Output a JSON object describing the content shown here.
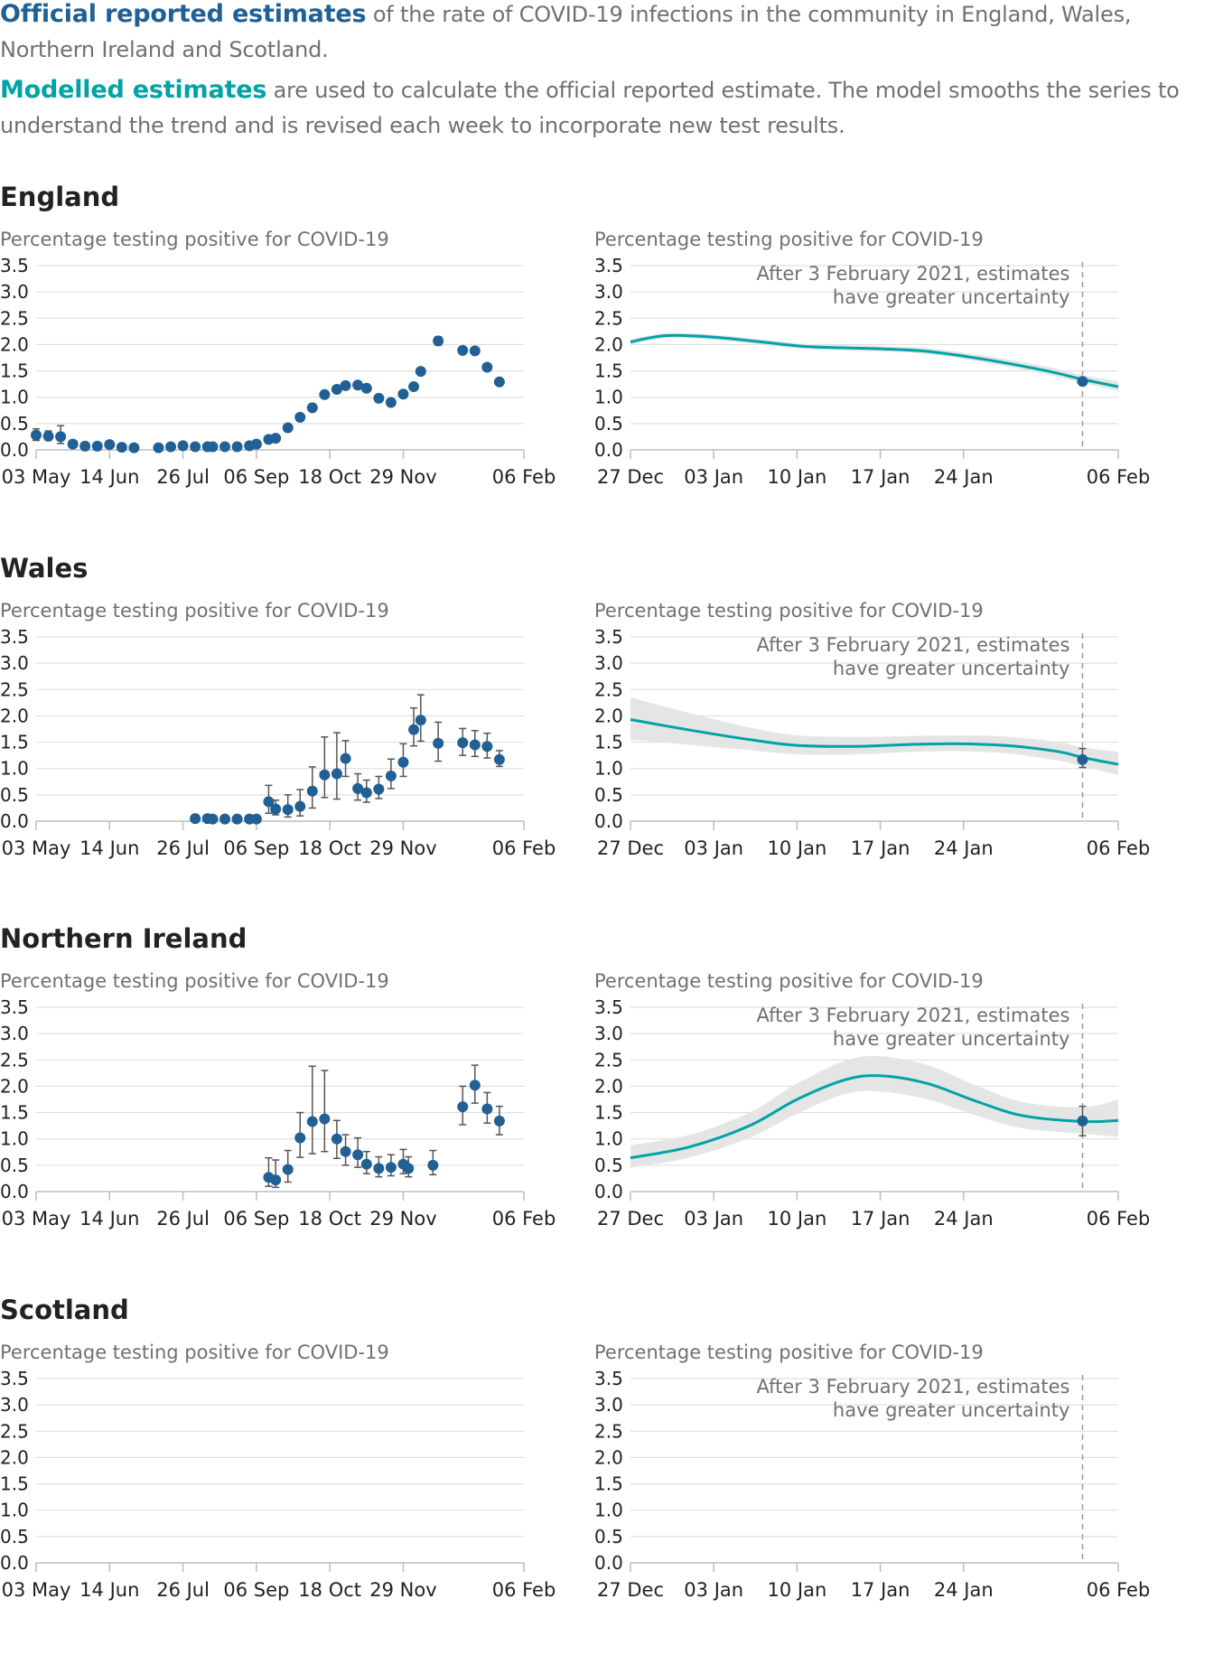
{
  "intro": {
    "official_key": "Official reported estimates",
    "official_rest": " of the rate of COVID-19 infections in the community in England, Wales, Northern Ireland and Scotland.",
    "modelled_key": "Modelled estimates",
    "modelled_rest": " are used to calculate the official reported estimate. The model smooths the series to understand the trend and is revised each week to incorporate new test results."
  },
  "colors": {
    "official": "#206095",
    "modelled": "#00a3a6",
    "band": "#e5e5e5",
    "grid": "#d9d9d9"
  },
  "chart_common": {
    "y_title": "Percentage testing positive for COVID-19",
    "y_ticks": [
      "0.0",
      "0.5",
      "1.0",
      "1.5",
      "2.0",
      "2.5",
      "3.0",
      "3.5"
    ],
    "left_x_ticks": [
      "03 May",
      "14 Jun",
      "26 Jul",
      "06 Sep",
      "18 Oct",
      "29 Nov",
      "06 Feb"
    ],
    "right_x_ticks": [
      "27 Dec",
      "03 Jan",
      "10 Jan",
      "17 Jan",
      "24 Jan",
      "06 Feb"
    ],
    "annotation_line1": "After 3 February 2021, estimates",
    "annotation_line2": "have greater uncertainty"
  },
  "chart_data": [
    {
      "region": "England",
      "type": "scatter",
      "panel": "official",
      "ylim": [
        0,
        3.5
      ],
      "x_range": [
        "2020-05-03",
        "2021-02-06"
      ],
      "points": [
        {
          "x": "2020-05-03",
          "y": 0.28,
          "lo": 0.18,
          "hi": 0.4
        },
        {
          "x": "2020-05-10",
          "y": 0.26,
          "lo": 0.18,
          "hi": 0.36
        },
        {
          "x": "2020-05-17",
          "y": 0.25,
          "lo": 0.12,
          "hi": 0.46
        },
        {
          "x": "2020-05-24",
          "y": 0.11,
          "lo": 0.07,
          "hi": 0.16
        },
        {
          "x": "2020-05-31",
          "y": 0.07,
          "lo": 0.05,
          "hi": 0.1
        },
        {
          "x": "2020-06-07",
          "y": 0.07,
          "lo": 0.05,
          "hi": 0.1
        },
        {
          "x": "2020-06-14",
          "y": 0.1,
          "lo": 0.04,
          "hi": 0.16
        },
        {
          "x": "2020-06-21",
          "y": 0.05,
          "lo": 0.03,
          "hi": 0.08
        },
        {
          "x": "2020-06-28",
          "y": 0.04,
          "lo": 0.02,
          "hi": 0.07
        },
        {
          "x": "2020-07-12",
          "y": 0.04,
          "lo": 0.02,
          "hi": 0.07
        },
        {
          "x": "2020-07-19",
          "y": 0.06,
          "lo": 0.03,
          "hi": 0.09
        },
        {
          "x": "2020-07-26",
          "y": 0.08,
          "lo": 0.05,
          "hi": 0.11
        },
        {
          "x": "2020-08-02",
          "y": 0.06,
          "lo": 0.04,
          "hi": 0.09
        },
        {
          "x": "2020-08-09",
          "y": 0.06,
          "lo": 0.04,
          "hi": 0.09
        },
        {
          "x": "2020-08-12",
          "y": 0.06,
          "lo": 0.04,
          "hi": 0.09
        },
        {
          "x": "2020-08-19",
          "y": 0.06,
          "lo": 0.04,
          "hi": 0.09
        },
        {
          "x": "2020-08-26",
          "y": 0.06,
          "lo": 0.04,
          "hi": 0.09
        },
        {
          "x": "2020-09-02",
          "y": 0.08,
          "lo": 0.05,
          "hi": 0.11
        },
        {
          "x": "2020-09-06",
          "y": 0.11,
          "lo": 0.08,
          "hi": 0.14
        },
        {
          "x": "2020-09-13",
          "y": 0.2,
          "lo": 0.16,
          "hi": 0.24
        },
        {
          "x": "2020-09-17",
          "y": 0.22,
          "lo": 0.18,
          "hi": 0.26
        },
        {
          "x": "2020-09-24",
          "y": 0.42,
          "lo": 0.37,
          "hi": 0.47
        },
        {
          "x": "2020-10-01",
          "y": 0.62,
          "lo": 0.57,
          "hi": 0.67
        },
        {
          "x": "2020-10-08",
          "y": 0.8,
          "lo": 0.75,
          "hi": 0.85
        },
        {
          "x": "2020-10-15",
          "y": 1.05,
          "lo": 1.0,
          "hi": 1.1
        },
        {
          "x": "2020-10-22",
          "y": 1.15,
          "lo": 1.1,
          "hi": 1.2
        },
        {
          "x": "2020-10-27",
          "y": 1.22,
          "lo": 1.17,
          "hi": 1.27
        },
        {
          "x": "2020-11-03",
          "y": 1.23,
          "lo": 1.18,
          "hi": 1.28
        },
        {
          "x": "2020-11-08",
          "y": 1.17,
          "lo": 1.12,
          "hi": 1.22
        },
        {
          "x": "2020-11-15",
          "y": 0.98,
          "lo": 0.93,
          "hi": 1.03
        },
        {
          "x": "2020-11-22",
          "y": 0.9,
          "lo": 0.85,
          "hi": 0.95
        },
        {
          "x": "2020-11-29",
          "y": 1.06,
          "lo": 1.01,
          "hi": 1.11
        },
        {
          "x": "2020-12-05",
          "y": 1.2,
          "lo": 1.15,
          "hi": 1.25
        },
        {
          "x": "2020-12-09",
          "y": 1.49,
          "lo": 1.44,
          "hi": 1.54
        },
        {
          "x": "2020-12-19",
          "y": 2.07,
          "lo": 1.99,
          "hi": 2.15
        },
        {
          "x": "2021-01-02",
          "y": 1.89,
          "lo": 1.84,
          "hi": 1.94
        },
        {
          "x": "2021-01-09",
          "y": 1.88,
          "lo": 1.83,
          "hi": 1.93
        },
        {
          "x": "2021-01-16",
          "y": 1.57,
          "lo": 1.52,
          "hi": 1.62
        },
        {
          "x": "2021-01-23",
          "y": 1.29,
          "lo": 1.24,
          "hi": 1.34
        }
      ]
    },
    {
      "region": "England",
      "type": "line",
      "panel": "modelled",
      "ylim": [
        0,
        3.5
      ],
      "x_range": [
        "2020-12-27",
        "2021-02-06"
      ],
      "series": [
        {
          "x": "2020-12-27",
          "y": 2.05,
          "lo": 2.0,
          "hi": 2.1
        },
        {
          "x": "2020-12-30",
          "y": 2.17,
          "lo": 2.12,
          "hi": 2.22
        },
        {
          "x": "2021-01-03",
          "y": 2.14,
          "lo": 2.09,
          "hi": 2.19
        },
        {
          "x": "2021-01-07",
          "y": 2.05,
          "lo": 2.0,
          "hi": 2.1
        },
        {
          "x": "2021-01-11",
          "y": 1.96,
          "lo": 1.91,
          "hi": 2.01
        },
        {
          "x": "2021-01-17",
          "y": 1.92,
          "lo": 1.87,
          "hi": 1.97
        },
        {
          "x": "2021-01-21",
          "y": 1.87,
          "lo": 1.82,
          "hi": 1.93
        },
        {
          "x": "2021-01-26",
          "y": 1.71,
          "lo": 1.65,
          "hi": 1.78
        },
        {
          "x": "2021-01-31",
          "y": 1.5,
          "lo": 1.43,
          "hi": 1.58
        },
        {
          "x": "2021-02-03",
          "y": 1.34,
          "lo": 1.27,
          "hi": 1.42
        },
        {
          "x": "2021-02-06",
          "y": 1.2,
          "lo": 1.12,
          "hi": 1.3
        }
      ],
      "official_point": {
        "x": "2021-02-03",
        "y": 1.3,
        "lo": 1.24,
        "hi": 1.36
      }
    },
    {
      "region": "Wales",
      "type": "scatter",
      "panel": "official",
      "ylim": [
        0,
        3.5
      ],
      "x_range": [
        "2020-05-03",
        "2021-02-06"
      ],
      "points": [
        {
          "x": "2020-08-02",
          "y": 0.05,
          "lo": 0.03,
          "hi": 0.08
        },
        {
          "x": "2020-08-09",
          "y": 0.05,
          "lo": 0.03,
          "hi": 0.08
        },
        {
          "x": "2020-08-12",
          "y": 0.04,
          "lo": 0.02,
          "hi": 0.07
        },
        {
          "x": "2020-08-19",
          "y": 0.04,
          "lo": 0.02,
          "hi": 0.07
        },
        {
          "x": "2020-08-26",
          "y": 0.04,
          "lo": 0.02,
          "hi": 0.07
        },
        {
          "x": "2020-09-02",
          "y": 0.04,
          "lo": 0.02,
          "hi": 0.07
        },
        {
          "x": "2020-09-06",
          "y": 0.04,
          "lo": 0.02,
          "hi": 0.07
        },
        {
          "x": "2020-09-13",
          "y": 0.37,
          "lo": 0.15,
          "hi": 0.68
        },
        {
          "x": "2020-09-17",
          "y": 0.23,
          "lo": 0.12,
          "hi": 0.4
        },
        {
          "x": "2020-09-24",
          "y": 0.22,
          "lo": 0.08,
          "hi": 0.5
        },
        {
          "x": "2020-10-01",
          "y": 0.28,
          "lo": 0.1,
          "hi": 0.6
        },
        {
          "x": "2020-10-08",
          "y": 0.57,
          "lo": 0.25,
          "hi": 1.03
        },
        {
          "x": "2020-10-15",
          "y": 0.88,
          "lo": 0.45,
          "hi": 1.6
        },
        {
          "x": "2020-10-22",
          "y": 0.9,
          "lo": 0.42,
          "hi": 1.68
        },
        {
          "x": "2020-10-27",
          "y": 1.19,
          "lo": 0.85,
          "hi": 1.53
        },
        {
          "x": "2020-11-03",
          "y": 0.62,
          "lo": 0.4,
          "hi": 0.9
        },
        {
          "x": "2020-11-08",
          "y": 0.54,
          "lo": 0.36,
          "hi": 0.78
        },
        {
          "x": "2020-11-15",
          "y": 0.61,
          "lo": 0.43,
          "hi": 0.85
        },
        {
          "x": "2020-11-22",
          "y": 0.86,
          "lo": 0.62,
          "hi": 1.18
        },
        {
          "x": "2020-11-29",
          "y": 1.12,
          "lo": 0.85,
          "hi": 1.47
        },
        {
          "x": "2020-12-05",
          "y": 1.74,
          "lo": 1.43,
          "hi": 2.15
        },
        {
          "x": "2020-12-09",
          "y": 1.92,
          "lo": 1.52,
          "hi": 2.4
        },
        {
          "x": "2020-12-19",
          "y": 1.48,
          "lo": 1.14,
          "hi": 1.88
        },
        {
          "x": "2021-01-02",
          "y": 1.49,
          "lo": 1.25,
          "hi": 1.76
        },
        {
          "x": "2021-01-09",
          "y": 1.45,
          "lo": 1.23,
          "hi": 1.72
        },
        {
          "x": "2021-01-16",
          "y": 1.42,
          "lo": 1.2,
          "hi": 1.67
        },
        {
          "x": "2021-01-23",
          "y": 1.17,
          "lo": 1.04,
          "hi": 1.34
        }
      ]
    },
    {
      "region": "Wales",
      "type": "line",
      "panel": "modelled",
      "ylim": [
        0,
        3.5
      ],
      "x_range": [
        "2020-12-27",
        "2021-02-06"
      ],
      "series": [
        {
          "x": "2020-12-27",
          "y": 1.93,
          "lo": 1.55,
          "hi": 2.35
        },
        {
          "x": "2021-01-01",
          "y": 1.73,
          "lo": 1.45,
          "hi": 2.05
        },
        {
          "x": "2021-01-06",
          "y": 1.55,
          "lo": 1.35,
          "hi": 1.78
        },
        {
          "x": "2021-01-10",
          "y": 1.44,
          "lo": 1.27,
          "hi": 1.63
        },
        {
          "x": "2021-01-15",
          "y": 1.42,
          "lo": 1.27,
          "hi": 1.6
        },
        {
          "x": "2021-01-20",
          "y": 1.46,
          "lo": 1.32,
          "hi": 1.62
        },
        {
          "x": "2021-01-24",
          "y": 1.47,
          "lo": 1.33,
          "hi": 1.63
        },
        {
          "x": "2021-01-28",
          "y": 1.43,
          "lo": 1.28,
          "hi": 1.6
        },
        {
          "x": "2021-02-01",
          "y": 1.32,
          "lo": 1.15,
          "hi": 1.5
        },
        {
          "x": "2021-02-03",
          "y": 1.21,
          "lo": 1.04,
          "hi": 1.4
        },
        {
          "x": "2021-02-06",
          "y": 1.08,
          "lo": 0.88,
          "hi": 1.32
        }
      ],
      "official_point": {
        "x": "2021-02-03",
        "y": 1.17,
        "lo": 1.02,
        "hi": 1.38
      }
    },
    {
      "region": "Northern Ireland",
      "type": "scatter",
      "panel": "official",
      "ylim": [
        0,
        3.5
      ],
      "x_range": [
        "2020-05-03",
        "2021-02-06"
      ],
      "points": [
        {
          "x": "2020-09-13",
          "y": 0.27,
          "lo": 0.1,
          "hi": 0.64
        },
        {
          "x": "2020-09-17",
          "y": 0.22,
          "lo": 0.08,
          "hi": 0.6
        },
        {
          "x": "2020-09-24",
          "y": 0.42,
          "lo": 0.18,
          "hi": 0.78
        },
        {
          "x": "2020-10-01",
          "y": 1.02,
          "lo": 0.65,
          "hi": 1.5
        },
        {
          "x": "2020-10-08",
          "y": 1.33,
          "lo": 0.72,
          "hi": 2.38
        },
        {
          "x": "2020-10-15",
          "y": 1.38,
          "lo": 0.76,
          "hi": 2.3
        },
        {
          "x": "2020-10-22",
          "y": 1.0,
          "lo": 0.63,
          "hi": 1.35
        },
        {
          "x": "2020-10-27",
          "y": 0.76,
          "lo": 0.5,
          "hi": 1.08
        },
        {
          "x": "2020-11-03",
          "y": 0.7,
          "lo": 0.46,
          "hi": 1.02
        },
        {
          "x": "2020-11-08",
          "y": 0.52,
          "lo": 0.34,
          "hi": 0.76
        },
        {
          "x": "2020-11-15",
          "y": 0.44,
          "lo": 0.28,
          "hi": 0.66
        },
        {
          "x": "2020-11-22",
          "y": 0.46,
          "lo": 0.3,
          "hi": 0.7
        },
        {
          "x": "2020-11-29",
          "y": 0.52,
          "lo": 0.34,
          "hi": 0.8
        },
        {
          "x": "2020-12-02",
          "y": 0.44,
          "lo": 0.28,
          "hi": 0.66
        },
        {
          "x": "2020-12-16",
          "y": 0.5,
          "lo": 0.32,
          "hi": 0.78
        },
        {
          "x": "2021-01-02",
          "y": 1.61,
          "lo": 1.27,
          "hi": 2.0
        },
        {
          "x": "2021-01-09",
          "y": 2.02,
          "lo": 1.68,
          "hi": 2.4
        },
        {
          "x": "2021-01-16",
          "y": 1.57,
          "lo": 1.3,
          "hi": 1.88
        },
        {
          "x": "2021-01-23",
          "y": 1.34,
          "lo": 1.08,
          "hi": 1.62
        }
      ]
    },
    {
      "region": "Northern Ireland",
      "type": "line",
      "panel": "modelled",
      "ylim": [
        0,
        3.5
      ],
      "x_range": [
        "2020-12-27",
        "2021-02-06"
      ],
      "series": [
        {
          "x": "2020-12-27",
          "y": 0.64,
          "lo": 0.45,
          "hi": 0.88
        },
        {
          "x": "2021-01-01",
          "y": 0.85,
          "lo": 0.65,
          "hi": 1.08
        },
        {
          "x": "2021-01-06",
          "y": 1.25,
          "lo": 1.02,
          "hi": 1.5
        },
        {
          "x": "2021-01-10",
          "y": 1.75,
          "lo": 1.48,
          "hi": 2.05
        },
        {
          "x": "2021-01-14",
          "y": 2.12,
          "lo": 1.85,
          "hi": 2.48
        },
        {
          "x": "2021-01-17",
          "y": 2.2,
          "lo": 1.9,
          "hi": 2.57
        },
        {
          "x": "2021-01-21",
          "y": 2.05,
          "lo": 1.75,
          "hi": 2.4
        },
        {
          "x": "2021-01-25",
          "y": 1.72,
          "lo": 1.45,
          "hi": 2.02
        },
        {
          "x": "2021-01-29",
          "y": 1.44,
          "lo": 1.2,
          "hi": 1.7
        },
        {
          "x": "2021-02-03",
          "y": 1.33,
          "lo": 1.1,
          "hi": 1.6
        },
        {
          "x": "2021-02-06",
          "y": 1.35,
          "lo": 1.04,
          "hi": 1.75
        }
      ],
      "official_point": {
        "x": "2021-02-03",
        "y": 1.34,
        "lo": 1.06,
        "hi": 1.62
      }
    },
    {
      "region": "Scotland",
      "type": "scatter",
      "panel": "official",
      "ylim": [
        0,
        3.5
      ],
      "x_range": [
        "2020-05-03",
        "2021-02-06"
      ],
      "points": []
    },
    {
      "region": "Scotland",
      "type": "line",
      "panel": "modelled",
      "ylim": [
        0,
        3.5
      ],
      "x_range": [
        "2020-12-27",
        "2021-02-06"
      ],
      "series": []
    }
  ]
}
